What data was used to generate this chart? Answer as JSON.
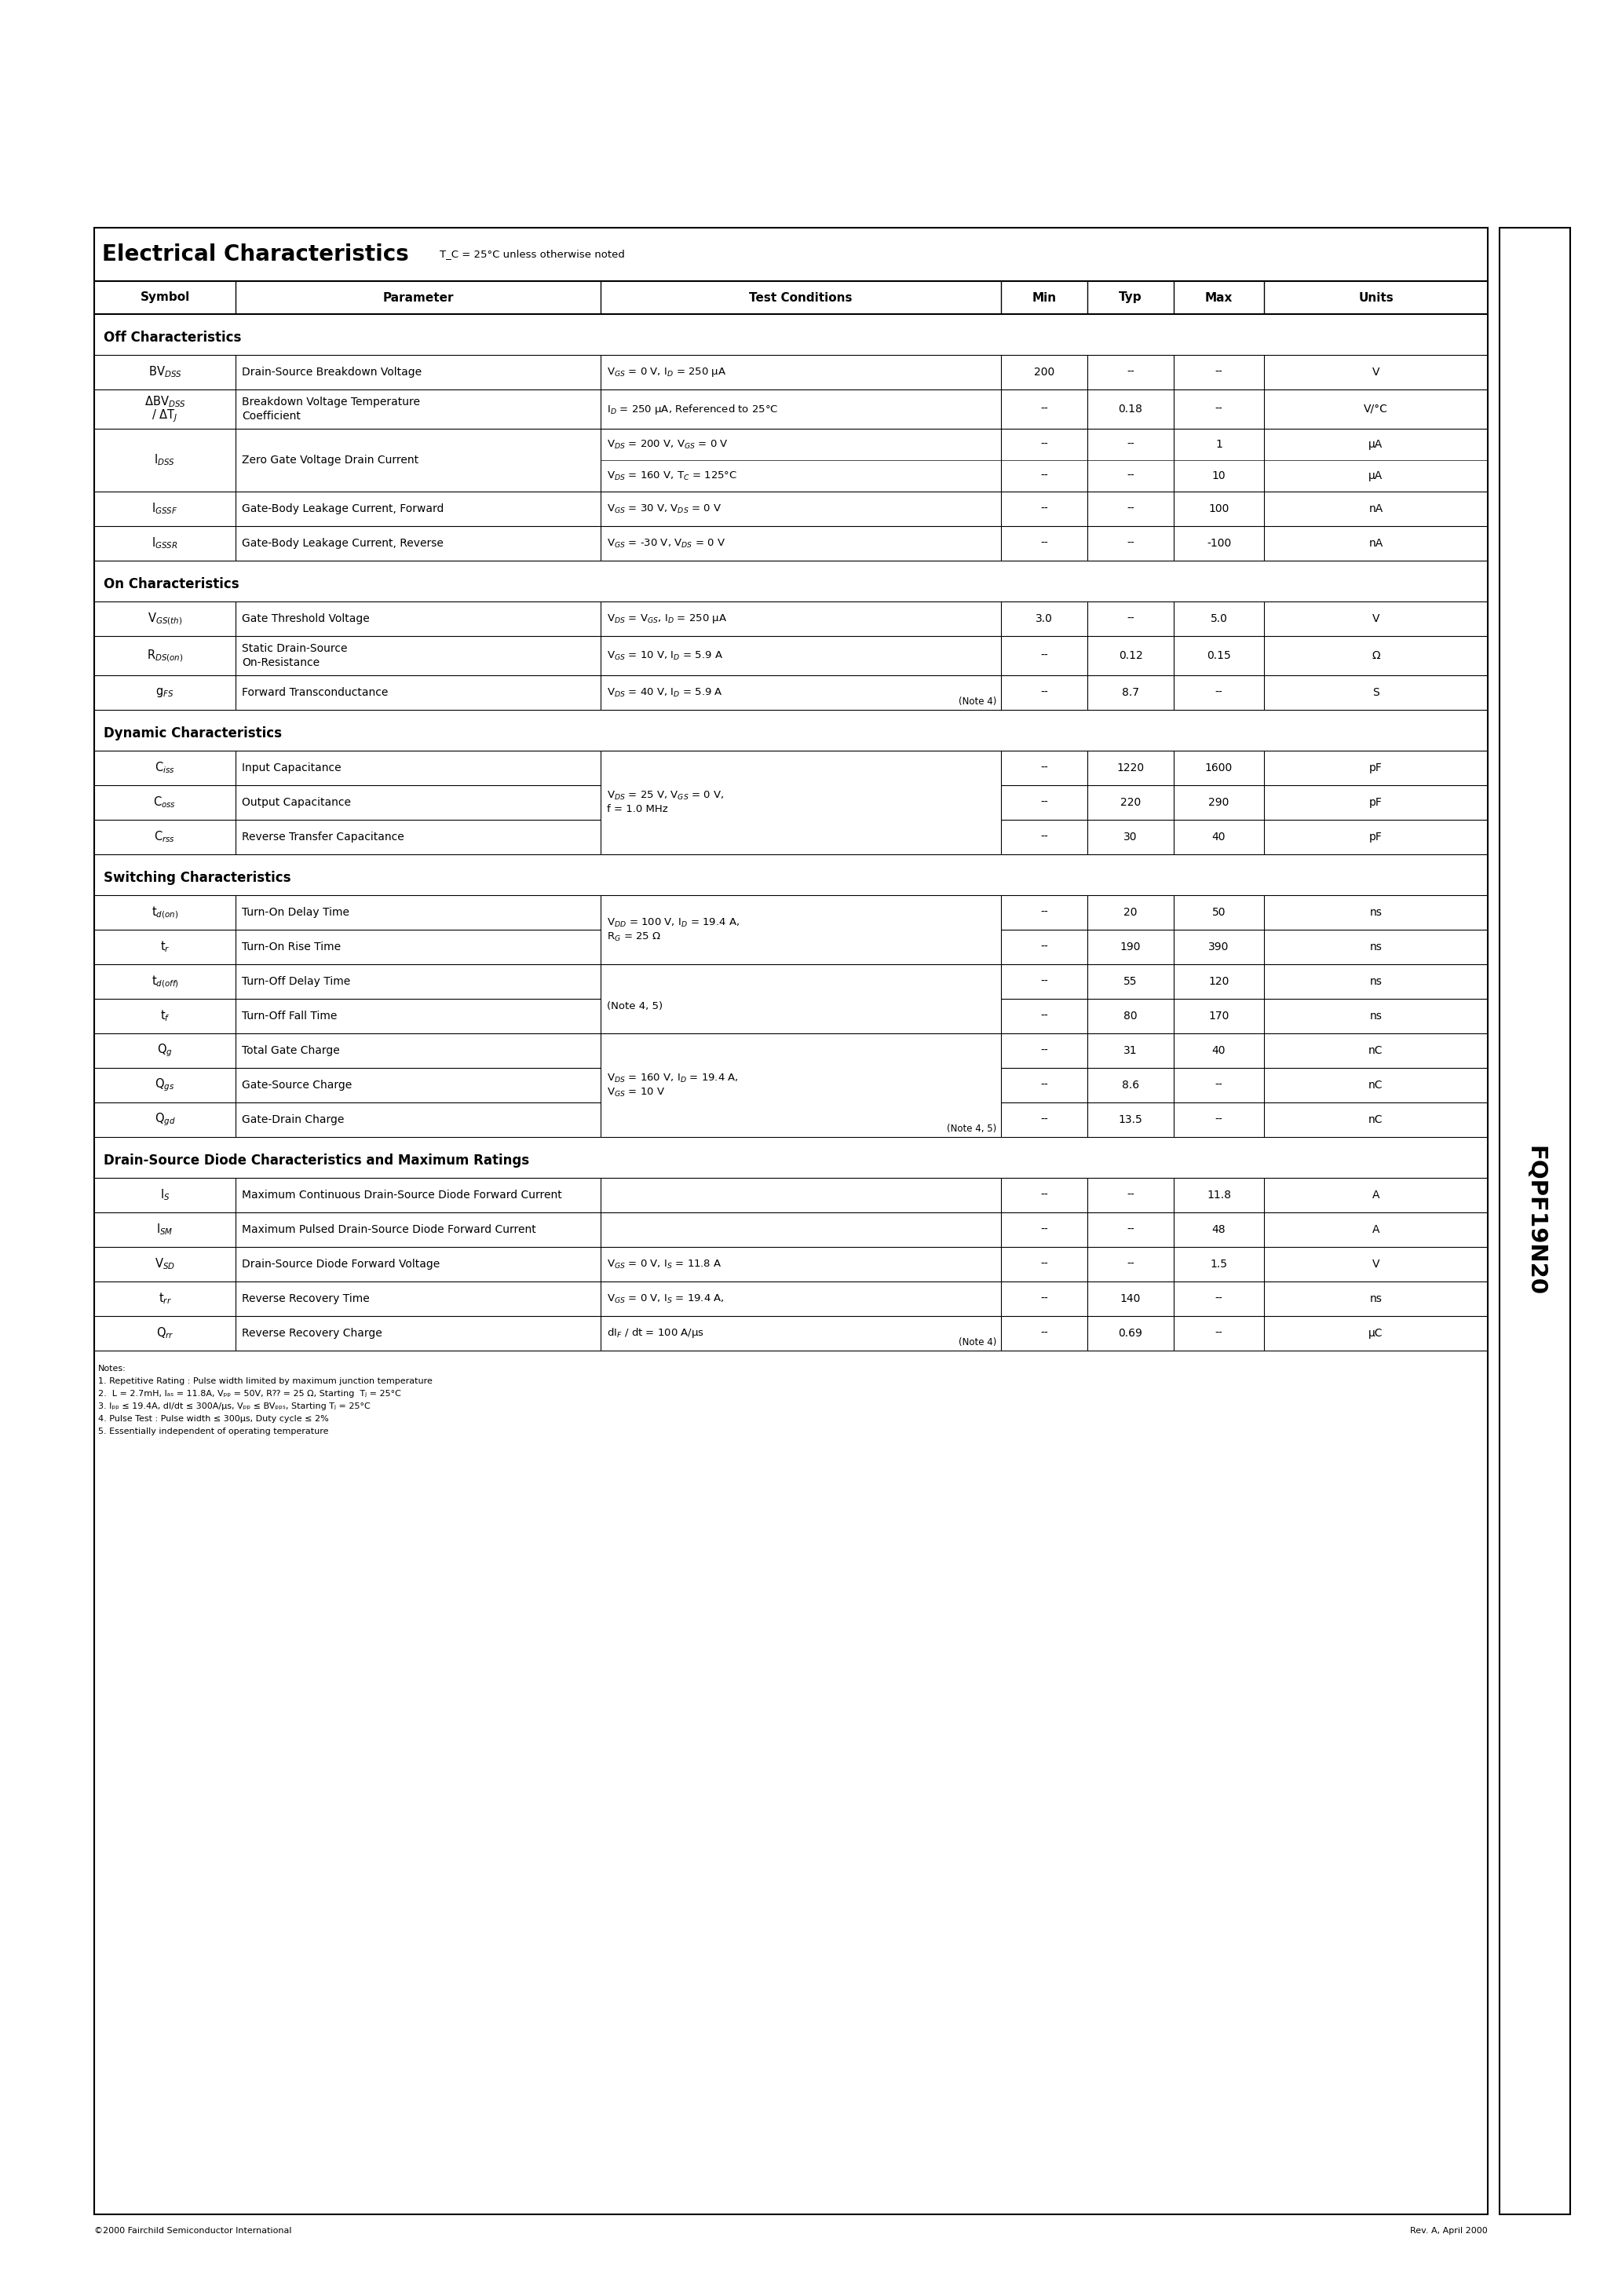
{
  "title": "Electrical Characteristics",
  "title_note": "T_C = 25°C unless otherwise noted",
  "part_number": "FQPF19N20",
  "footer_left": "©2000 Fairchild Semiconductor International",
  "footer_right": "Rev. A, April 2000"
}
